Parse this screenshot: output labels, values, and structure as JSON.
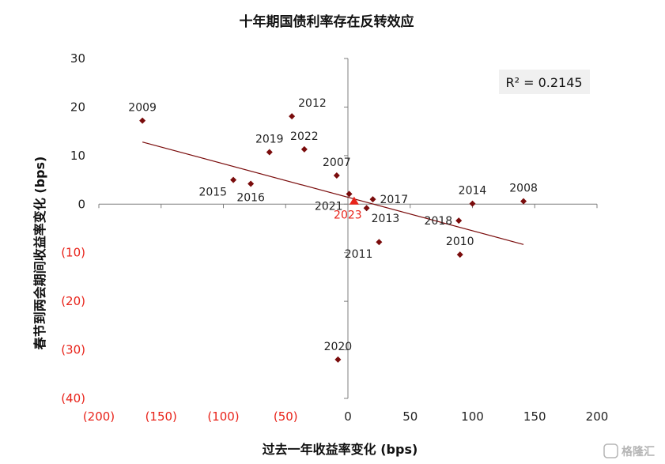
{
  "watermark": "格隆汇",
  "chart_data": {
    "type": "scatter",
    "title": "十年期国债利率存在反转效应",
    "xlabel": "过去一年收益率变化 (bps)",
    "ylabel": "春节到两会期间收益率变化 (bps)",
    "xlim": [
      -200,
      200
    ],
    "ylim": [
      -40,
      30
    ],
    "x_ticks": [
      {
        "value": -200,
        "label": "(200)"
      },
      {
        "value": -150,
        "label": "(150)"
      },
      {
        "value": -100,
        "label": "(100)"
      },
      {
        "value": -50,
        "label": "(50)"
      },
      {
        "value": 0,
        "label": "0"
      },
      {
        "value": 50,
        "label": "50"
      },
      {
        "value": 100,
        "label": "100"
      },
      {
        "value": 150,
        "label": "150"
      },
      {
        "value": 200,
        "label": "200"
      }
    ],
    "y_ticks": [
      {
        "value": 30,
        "label": "30"
      },
      {
        "value": 20,
        "label": "20"
      },
      {
        "value": 10,
        "label": "10"
      },
      {
        "value": 0,
        "label": "0"
      },
      {
        "value": -10,
        "label": "(10)"
      },
      {
        "value": -20,
        "label": "(20)"
      },
      {
        "value": -30,
        "label": "(30)"
      },
      {
        "value": -40,
        "label": "(40)"
      }
    ],
    "negative_tick_color": "#e8231a",
    "marker_color": "#7a0c0c",
    "highlight_color": "#e8231a",
    "trendline": {
      "x": [
        -165,
        141
      ],
      "y": [
        12.8,
        -8.3
      ],
      "color": "#7a0c0c"
    },
    "r_squared": "R² = 0.2145",
    "points": [
      {
        "label": "2009",
        "x": -165,
        "y": 17.2,
        "label_pos": "above"
      },
      {
        "label": "2012",
        "x": -45,
        "y": 18.1,
        "label_pos": "above-right"
      },
      {
        "label": "2019",
        "x": -63,
        "y": 10.7,
        "label_pos": "above"
      },
      {
        "label": "2022",
        "x": -35,
        "y": 11.3,
        "label_pos": "above"
      },
      {
        "label": "2007",
        "x": -9,
        "y": 5.9,
        "label_pos": "above"
      },
      {
        "label": "2015",
        "x": -92,
        "y": 5.0,
        "label_pos": "below-left"
      },
      {
        "label": "2016",
        "x": -78,
        "y": 4.2,
        "label_pos": "below"
      },
      {
        "label": "2021",
        "x": 1,
        "y": 2.1,
        "label_pos": "below-left"
      },
      {
        "label": "2017",
        "x": 20,
        "y": 1.0,
        "label_pos": "right"
      },
      {
        "label": "2013",
        "x": 15,
        "y": -0.8,
        "label_pos": "below-right"
      },
      {
        "label": "2014",
        "x": 100,
        "y": 0.1,
        "label_pos": "above"
      },
      {
        "label": "2008",
        "x": 141,
        "y": 0.6,
        "label_pos": "above"
      },
      {
        "label": "2018",
        "x": 89,
        "y": -3.4,
        "label_pos": "left"
      },
      {
        "label": "2010",
        "x": 90,
        "y": -10.4,
        "label_pos": "above"
      },
      {
        "label": "2011",
        "x": 25,
        "y": -7.8,
        "label_pos": "below-left"
      },
      {
        "label": "2020",
        "x": -8,
        "y": -32.0,
        "label_pos": "above"
      }
    ],
    "highlight_point": {
      "label": "2023",
      "x": 5,
      "y": 0.6,
      "label_pos": "below"
    }
  }
}
